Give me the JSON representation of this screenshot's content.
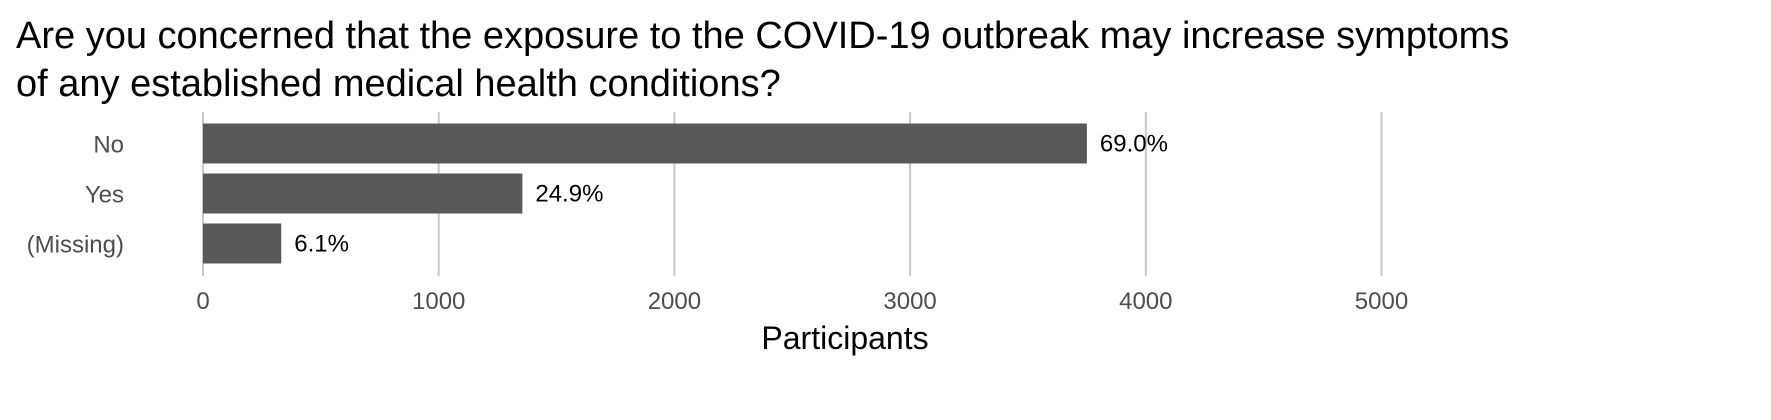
{
  "chart_data": {
    "type": "bar",
    "orientation": "horizontal",
    "title": "Are you concerned that the exposure to the COVID-19 outbreak may increase symptoms of any established medical health conditions?",
    "xlabel": "Participants",
    "ylabel": "",
    "categories": [
      "No",
      "Yes",
      "(Missing)"
    ],
    "values": [
      3750,
      1355,
      332
    ],
    "data_labels": [
      "69.0%",
      "24.9%",
      "6.1%"
    ],
    "xlim": [
      0,
      5300
    ],
    "x_ticks": [
      0,
      1000,
      2000,
      3000,
      4000,
      5000
    ],
    "x_tick_labels": [
      "0",
      "1000",
      "2000",
      "3000",
      "4000",
      "5000"
    ],
    "grid": "vertical major",
    "legend": "none",
    "bar_color": "#595959",
    "grid_color": "#c8c8c8"
  }
}
